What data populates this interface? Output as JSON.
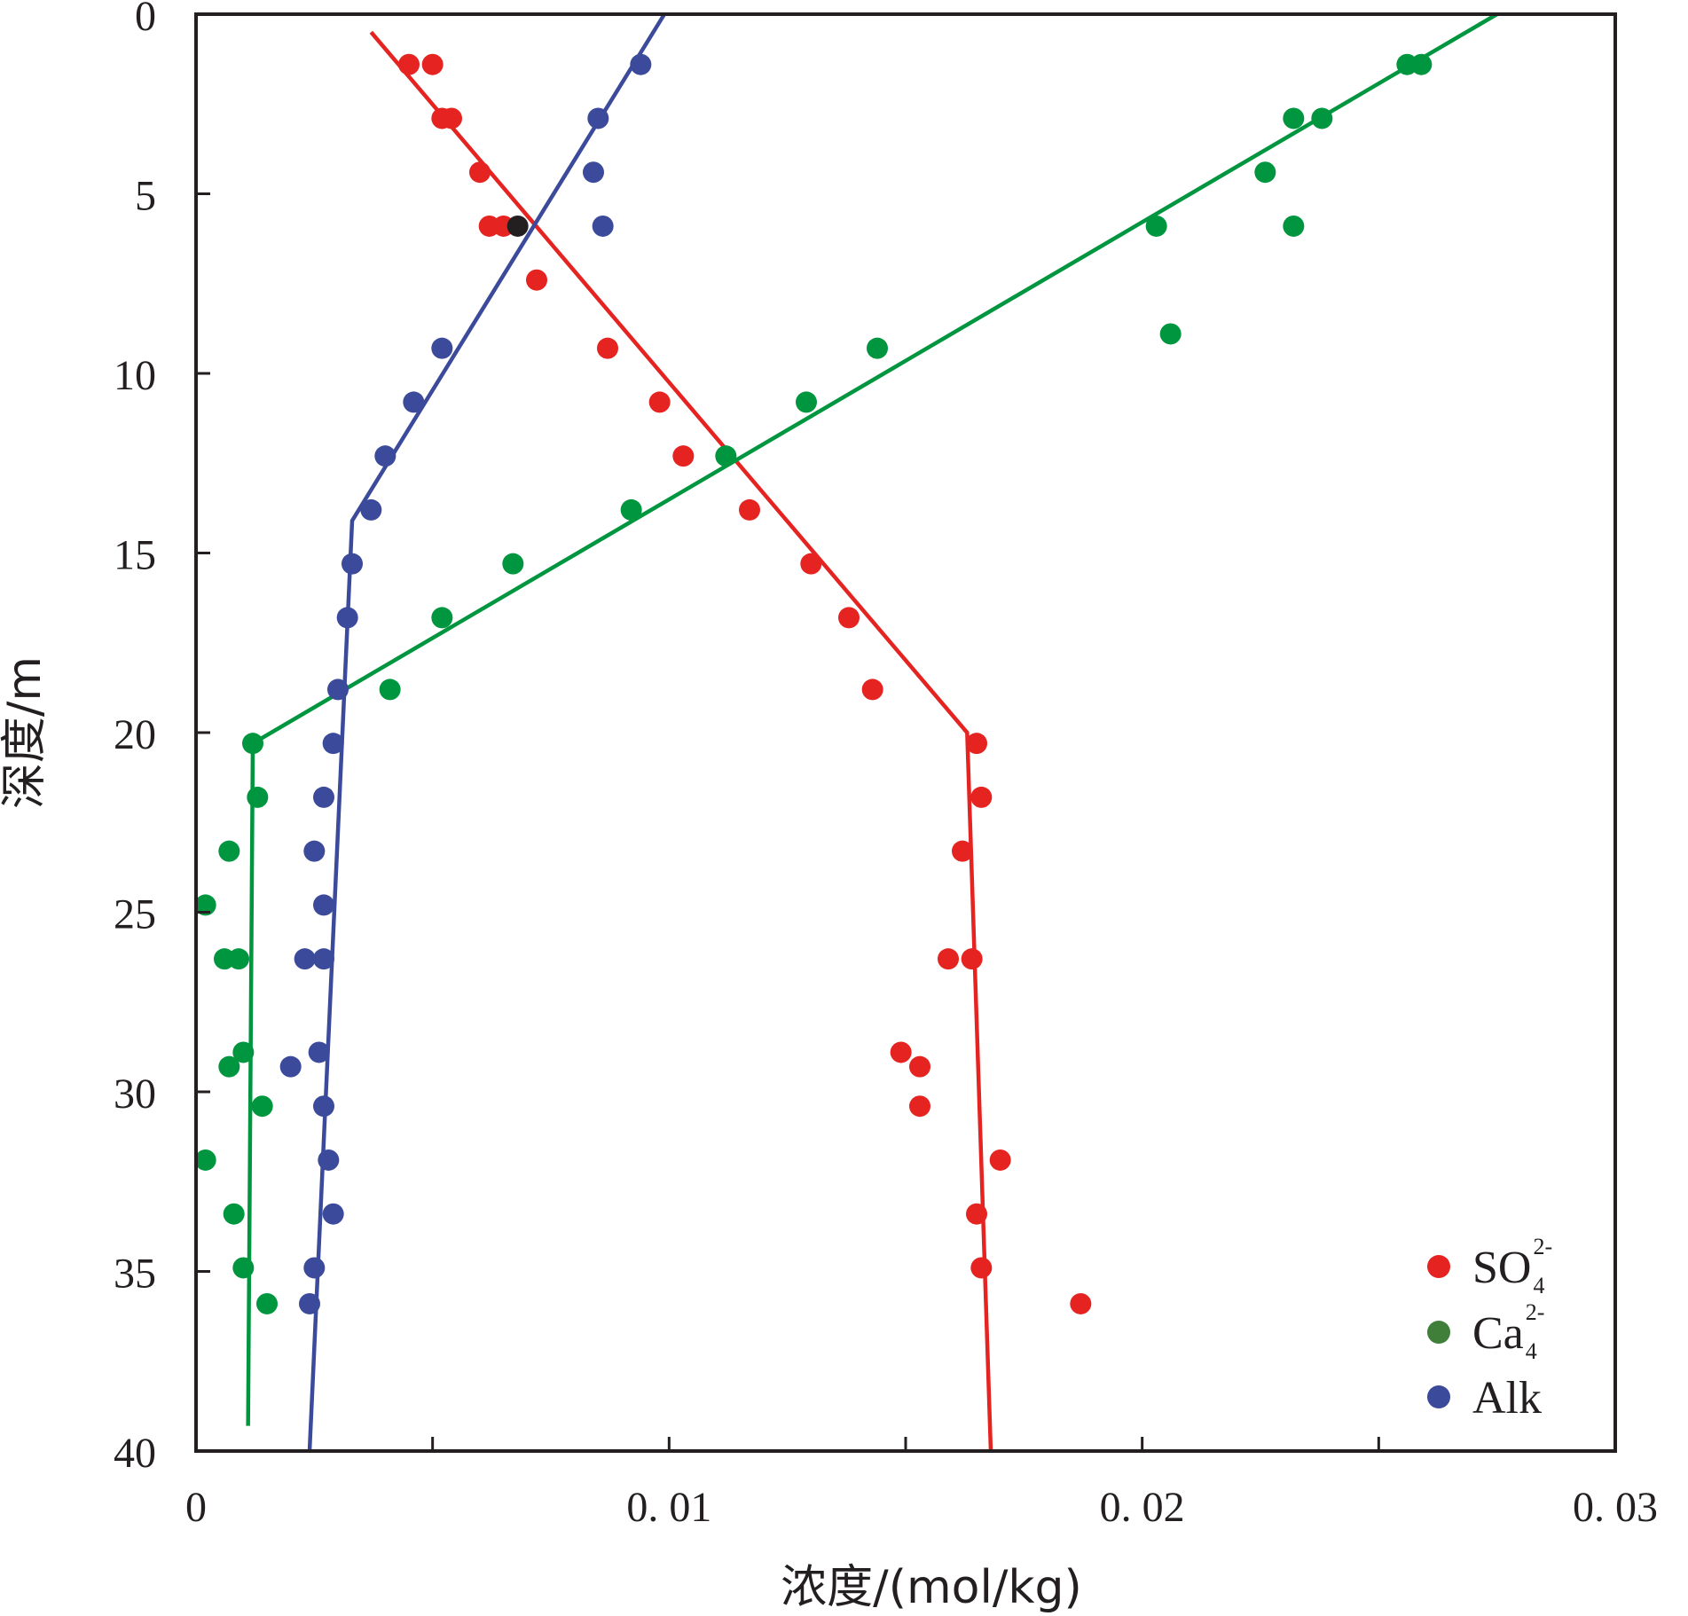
{
  "chart_data": {
    "type": "scatter",
    "xlabel": "浓度/(mol/kg)",
    "ylabel": "深度/m",
    "xlim": [
      0,
      0.03
    ],
    "ylim": [
      0,
      40
    ],
    "y_inverted": true,
    "x_ticks": [
      {
        "value": 0,
        "label": "0"
      },
      {
        "value": 0.01,
        "label": "0. 01"
      },
      {
        "value": 0.02,
        "label": "0. 02"
      },
      {
        "value": 0.03,
        "label": "0. 03"
      }
    ],
    "y_ticks": [
      {
        "value": 0,
        "label": "0"
      },
      {
        "value": 5,
        "label": "5"
      },
      {
        "value": 10,
        "label": "10"
      },
      {
        "value": 15,
        "label": "15"
      },
      {
        "value": 20,
        "label": "20"
      },
      {
        "value": 25,
        "label": "25"
      },
      {
        "value": 30,
        "label": "30"
      },
      {
        "value": 35,
        "label": "35"
      },
      {
        "value": 40,
        "label": "40"
      }
    ],
    "grid": false,
    "legend_position": "bottom-right",
    "series": [
      {
        "name": "SO",
        "legend_sup": "2-",
        "legend_sub": "4",
        "color": "#e52421",
        "points": [
          [
            0.0045,
            1.4
          ],
          [
            0.005,
            1.4
          ],
          [
            0.0052,
            2.9
          ],
          [
            0.0054,
            2.9
          ],
          [
            0.006,
            4.4
          ],
          [
            0.0062,
            5.9
          ],
          [
            0.0065,
            5.9
          ],
          [
            0.0072,
            7.4
          ],
          [
            0.0087,
            9.3
          ],
          [
            0.0098,
            10.8
          ],
          [
            0.0103,
            12.3
          ],
          [
            0.0117,
            13.8
          ],
          [
            0.013,
            15.3
          ],
          [
            0.0138,
            16.8
          ],
          [
            0.0143,
            18.8
          ],
          [
            0.0165,
            20.3
          ],
          [
            0.0166,
            21.8
          ],
          [
            0.0162,
            23.3
          ],
          [
            0.0164,
            26.3
          ],
          [
            0.0159,
            26.3
          ],
          [
            0.0149,
            28.9
          ],
          [
            0.0153,
            29.3
          ],
          [
            0.0153,
            30.4
          ],
          [
            0.017,
            31.9
          ],
          [
            0.0165,
            33.4
          ],
          [
            0.0166,
            34.9
          ],
          [
            0.0187,
            35.9
          ]
        ],
        "fit_line": [
          [
            0.0037,
            0.5
          ],
          [
            0.0163,
            20.0
          ],
          [
            0.0168,
            40.0
          ]
        ]
      },
      {
        "name": "Ca",
        "legend_sup": "2-",
        "legend_sub": "4",
        "color": "#00963f",
        "legend_color": "#3f7f3a",
        "points": [
          [
            0.0256,
            1.4
          ],
          [
            0.0259,
            1.4
          ],
          [
            0.0232,
            2.9
          ],
          [
            0.0238,
            2.9
          ],
          [
            0.0226,
            4.4
          ],
          [
            0.0203,
            5.9
          ],
          [
            0.0232,
            5.9
          ],
          [
            0.0206,
            8.9
          ],
          [
            0.0144,
            9.3
          ],
          [
            0.0129,
            10.8
          ],
          [
            0.0112,
            12.3
          ],
          [
            0.0092,
            13.8
          ],
          [
            0.0067,
            15.3
          ],
          [
            0.0052,
            16.8
          ],
          [
            0.0041,
            18.8
          ],
          [
            0.0012,
            20.3
          ],
          [
            0.0013,
            21.8
          ],
          [
            0.0007,
            23.3
          ],
          [
            0.0002,
            24.8
          ],
          [
            0.0006,
            26.3
          ],
          [
            0.0009,
            26.3
          ],
          [
            0.001,
            28.9
          ],
          [
            0.0007,
            29.3
          ],
          [
            0.0014,
            30.4
          ],
          [
            0.0002,
            31.9
          ],
          [
            0.0008,
            33.4
          ],
          [
            0.001,
            34.9
          ],
          [
            0.0015,
            35.9
          ]
        ],
        "fit_line": [
          [
            0.0275,
            0.0
          ],
          [
            0.0012,
            20.3
          ],
          [
            0.0011,
            39.3
          ]
        ]
      },
      {
        "name": "Alk",
        "color": "#3b4a9a",
        "points": [
          [
            0.0094,
            1.4
          ],
          [
            0.0085,
            2.9
          ],
          [
            0.0084,
            4.4
          ],
          [
            0.0086,
            5.9
          ],
          [
            0.0052,
            9.3
          ],
          [
            0.0046,
            10.8
          ],
          [
            0.004,
            12.3
          ],
          [
            0.0037,
            13.8
          ],
          [
            0.0033,
            15.3
          ],
          [
            0.0032,
            16.8
          ],
          [
            0.003,
            18.8
          ],
          [
            0.0029,
            20.3
          ],
          [
            0.0027,
            21.8
          ],
          [
            0.0025,
            23.3
          ],
          [
            0.0027,
            24.8
          ],
          [
            0.0027,
            26.3
          ],
          [
            0.0023,
            26.3
          ],
          [
            0.0026,
            28.9
          ],
          [
            0.002,
            29.3
          ],
          [
            0.0027,
            30.4
          ],
          [
            0.0028,
            31.9
          ],
          [
            0.0029,
            33.4
          ],
          [
            0.0025,
            34.9
          ],
          [
            0.0024,
            35.9
          ]
        ],
        "fit_line": [
          [
            0.0099,
            0.0
          ],
          [
            0.0033,
            14.1
          ],
          [
            0.0024,
            40.0
          ]
        ]
      }
    ],
    "extra_points": [
      {
        "x": 0.0068,
        "y": 5.9,
        "color": "#231f20"
      }
    ]
  }
}
